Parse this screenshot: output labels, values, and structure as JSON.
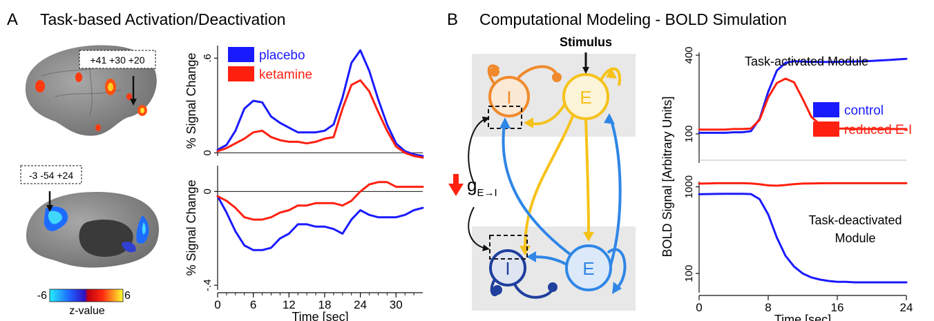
{
  "panel_a": {
    "letter": "A",
    "title": "Task-based Activation/Deactivation",
    "coord_top": "+41 +30 +20",
    "coord_bottom": "-3 -54 +24",
    "colorbar": {
      "min": "-6",
      "max": "6",
      "label": "z-value"
    }
  },
  "panel_b": {
    "letter": "B",
    "title": "Computational Modeling - BOLD Simulation",
    "stimulus_label": "Stimulus",
    "node_inhibitory": "I",
    "node_excitatory": "E",
    "coupling_label": "g",
    "coupling_subscript": "E→I"
  },
  "colors": {
    "blue": "#1a1aff",
    "red": "#ff2010",
    "orange": "#f08a2c",
    "yellow": "#f6c21a",
    "light_blue": "#2f86e6",
    "navy": "#1f3f9e",
    "brain_gray": "#8a8a8a",
    "module_bg": "#e8e8e8"
  },
  "chart_data": [
    {
      "type": "line",
      "id": "a-top",
      "ylabel": "% Signal Change",
      "y_ticks": [
        "0",
        ".6"
      ],
      "ylim": [
        -0.02,
        0.68
      ],
      "x": [
        0,
        1.5,
        3,
        4.5,
        6,
        7.5,
        9,
        10.5,
        12,
        13.5,
        15,
        16.5,
        18,
        19.5,
        21,
        22.5,
        24,
        25.5,
        27,
        28.5,
        30,
        31.5,
        33,
        34.5
      ],
      "legend": [
        "placebo",
        "ketamine"
      ],
      "series": [
        {
          "name": "placebo",
          "color": "#1a1aff",
          "values": [
            0.02,
            0.05,
            0.14,
            0.28,
            0.33,
            0.32,
            0.23,
            0.19,
            0.16,
            0.13,
            0.13,
            0.13,
            0.14,
            0.18,
            0.35,
            0.57,
            0.65,
            0.52,
            0.34,
            0.18,
            0.06,
            0.01,
            -0.01,
            -0.02
          ]
        },
        {
          "name": "ketamine",
          "color": "#ff2010",
          "values": [
            0.01,
            0.03,
            0.06,
            0.09,
            0.13,
            0.14,
            0.1,
            0.08,
            0.07,
            0.07,
            0.06,
            0.07,
            0.09,
            0.1,
            0.28,
            0.43,
            0.46,
            0.39,
            0.26,
            0.14,
            0.04,
            0.0,
            -0.02,
            -0.03
          ]
        }
      ]
    },
    {
      "type": "line",
      "id": "a-bottom",
      "ylabel": "% Signal Change",
      "y_ticks": [
        "0",
        "-.4"
      ],
      "ylim": [
        -0.42,
        0.11
      ],
      "x": [
        0,
        1.5,
        3,
        4.5,
        6,
        7.5,
        9,
        10.5,
        12,
        13.5,
        15,
        16.5,
        18,
        19.5,
        21,
        22.5,
        24,
        25.5,
        27,
        28.5,
        30,
        31.5,
        33,
        34.5
      ],
      "xlabel": "Time [sec]",
      "x_ticks": [
        "0",
        "6",
        "12",
        "18",
        "24",
        "30"
      ],
      "series": [
        {
          "name": "",
          "color": "#1a1aff",
          "values": [
            -0.02,
            -0.09,
            -0.17,
            -0.23,
            -0.25,
            -0.25,
            -0.24,
            -0.2,
            -0.18,
            -0.14,
            -0.14,
            -0.15,
            -0.15,
            -0.16,
            -0.18,
            -0.12,
            -0.08,
            -0.1,
            -0.11,
            -0.11,
            -0.11,
            -0.1,
            -0.08,
            -0.07
          ]
        },
        {
          "name": "",
          "color": "#ff2010",
          "values": [
            -0.02,
            -0.04,
            -0.07,
            -0.11,
            -0.12,
            -0.12,
            -0.11,
            -0.09,
            -0.08,
            -0.06,
            -0.06,
            -0.05,
            -0.05,
            -0.05,
            -0.06,
            -0.04,
            0.0,
            0.03,
            0.04,
            0.04,
            0.02,
            0.02,
            0.02,
            0.02
          ]
        }
      ]
    },
    {
      "type": "line",
      "id": "b-top",
      "title": "Task-activated Module",
      "y_ticks": [
        "100",
        "400"
      ],
      "ylim": [
        60,
        420
      ],
      "x": [
        0,
        1,
        2,
        3,
        4,
        5,
        6,
        7,
        8,
        9,
        10,
        11,
        12,
        13,
        14,
        15,
        16,
        17,
        18,
        19,
        20,
        21,
        22,
        23,
        24
      ],
      "legend": [
        "control",
        "reduced E-I"
      ],
      "series": [
        {
          "name": "control",
          "color": "#1a1aff",
          "values": [
            102,
            102,
            102,
            102,
            103,
            103,
            105,
            130,
            210,
            305,
            350,
            360,
            358,
            356,
            355,
            355,
            356,
            357,
            358,
            360,
            362,
            365,
            368,
            372,
            375
          ]
        },
        {
          "name": "reduced E-I",
          "color": "#ff2010",
          "values": [
            108,
            108,
            108,
            108,
            109,
            109,
            110,
            128,
            190,
            245,
            265,
            248,
            185,
            135,
            118,
            112,
            110,
            110,
            109,
            109,
            109,
            109,
            109,
            109,
            109
          ]
        }
      ]
    },
    {
      "type": "line",
      "id": "b-bottom",
      "title": "Task-deactivated Module",
      "y_ticks": [
        "100",
        "1000"
      ],
      "ylim": [
        60,
        1150
      ],
      "x": [
        0,
        1,
        2,
        3,
        4,
        5,
        6,
        7,
        8,
        9,
        10,
        11,
        12,
        13,
        14,
        15,
        16,
        17,
        18,
        19,
        20,
        21,
        22,
        23,
        24
      ],
      "xlabel": "Time [sec]",
      "x_ticks": [
        "0",
        "8",
        "16",
        "24"
      ],
      "series": [
        {
          "name": "control",
          "color": "#1a1aff",
          "values": [
            820,
            825,
            828,
            830,
            830,
            830,
            825,
            720,
            480,
            260,
            160,
            120,
            100,
            90,
            85,
            82,
            80,
            80,
            79,
            79,
            79,
            79,
            79,
            79,
            79
          ]
        },
        {
          "name": "reduced E-I",
          "color": "#ff2010",
          "values": [
            1090,
            1095,
            1100,
            1100,
            1100,
            1100,
            1095,
            1070,
            1040,
            1030,
            1050,
            1075,
            1090,
            1095,
            1098,
            1100,
            1100,
            1100,
            1100,
            1100,
            1100,
            1100,
            1100,
            1100,
            1100
          ]
        }
      ]
    }
  ],
  "shared_ylabel_b": "BOLD Signal [Arbitrary Units]"
}
